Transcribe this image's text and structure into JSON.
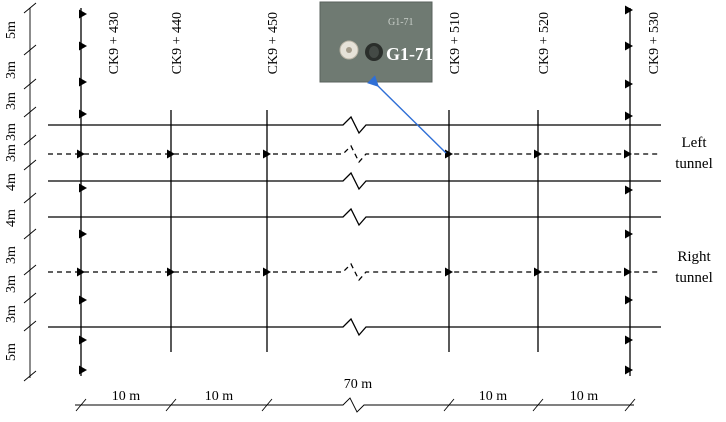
{
  "stations": [
    "CK9 + 430",
    "CK9 + 440",
    "CK9 + 450",
    "CK9 + 510",
    "CK9 + 520",
    "CK9 + 530"
  ],
  "left_spacings": [
    "5m",
    "3m",
    "3m",
    "3m",
    "3m",
    "4m",
    "4m",
    "3m",
    "3m",
    "3m",
    "5m"
  ],
  "bottom_spacings": [
    "10 m",
    "10 m",
    "70 m",
    "10 m",
    "10 m"
  ],
  "left_tunnel_label": [
    "Left",
    "tunnel"
  ],
  "right_tunnel_label": [
    "Right",
    "tunnel"
  ],
  "photo_label": "G1-71",
  "colors": {
    "lines": "#000000",
    "pointer": "#2f6fd6",
    "photo_bg": "#6f7a72"
  }
}
